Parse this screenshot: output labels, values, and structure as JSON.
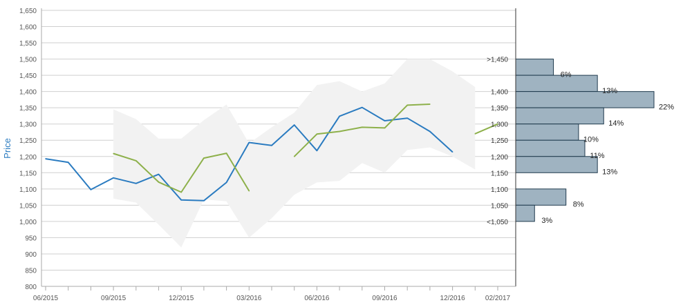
{
  "chart_data": {
    "type": "line",
    "ylabel": "Price",
    "ylim": [
      800,
      1650
    ],
    "yticks": [
      "800",
      "850",
      "900",
      "950",
      "1,000",
      "1,050",
      "1,100",
      "1,150",
      "1,200",
      "1,250",
      "1,300",
      "1,350",
      "1,400",
      "1,450",
      "1,500",
      "1,550",
      "1,600",
      "1,650"
    ],
    "xticks": [
      "06/2015",
      "09/2015",
      "12/2015",
      "03/2016",
      "06/2016",
      "09/2016",
      "12/2016",
      "02/2017"
    ],
    "x": [
      "06/2015",
      "07/2015",
      "08/2015",
      "09/2015",
      "10/2015",
      "11/2015",
      "12/2015",
      "01/2016",
      "02/2016",
      "03/2016",
      "04/2016",
      "05/2016",
      "06/2016",
      "07/2016",
      "08/2016",
      "09/2016",
      "10/2016",
      "11/2016",
      "12/2016",
      "01/2017",
      "02/2017"
    ],
    "colors": {
      "series1": "#2a7bc0",
      "series2": "#8db04a",
      "band": "#f2f2f2",
      "bars": "#9fb3c1",
      "bar_border": "#1f3a4d"
    },
    "series": [
      {
        "values": [
          1193,
          1182,
          1098,
          1134,
          1117,
          1145,
          1066,
          1064,
          1120,
          1243,
          1234,
          1297,
          1218,
          1324,
          1351,
          1310,
          1318,
          1277,
          1214,
          null,
          null
        ]
      },
      {
        "values": [
          null,
          null,
          null,
          1209,
          1187,
          1121,
          1090,
          1195,
          1210,
          1094,
          null,
          1200,
          1269,
          1277,
          1290,
          1288,
          1358,
          1361,
          null,
          1270,
          1300
        ]
      }
    ],
    "band_upper": [
      null,
      null,
      null,
      1345,
      1315,
      1255,
      1255,
      1312,
      1360,
      1240,
      1290,
      1335,
      1420,
      1432,
      1400,
      1425,
      1500,
      1500,
      1462,
      1414,
      null
    ],
    "band_lower": [
      null,
      null,
      null,
      1070,
      1058,
      990,
      920,
      1068,
      1062,
      950,
      1010,
      1082,
      1120,
      1125,
      1180,
      1150,
      1220,
      1228,
      1200,
      1160,
      null
    ],
    "distribution": [
      {
        "label": ">1,450",
        "percent": "6%",
        "value": 6,
        "lo": 1450,
        "hi": 1500
      },
      {
        "label": "1,400",
        "percent": "13%",
        "value": 13,
        "lo": 1400,
        "hi": 1450
      },
      {
        "label": "1,350",
        "percent": "22%",
        "value": 22,
        "lo": 1350,
        "hi": 1400
      },
      {
        "label": "1,300",
        "percent": "14%",
        "value": 14,
        "lo": 1300,
        "hi": 1350
      },
      {
        "label": "1,250",
        "percent": "10%",
        "value": 10,
        "lo": 1250,
        "hi": 1300
      },
      {
        "label": "1,200",
        "percent": "11%",
        "value": 11,
        "lo": 1200,
        "hi": 1250
      },
      {
        "label": "1,150",
        "percent": "13%",
        "value": 13,
        "lo": 1150,
        "hi": 1200
      },
      {
        "label": "1,100",
        "percent": "8%",
        "value": 8,
        "lo": 1050,
        "hi": 1100
      },
      {
        "label": "1,050",
        "percent": "3%",
        "value": 3,
        "lo": 1000,
        "hi": 1050
      },
      {
        "label": "<1,050",
        "percent": "",
        "value": null,
        "lo": null,
        "hi": null
      }
    ]
  }
}
